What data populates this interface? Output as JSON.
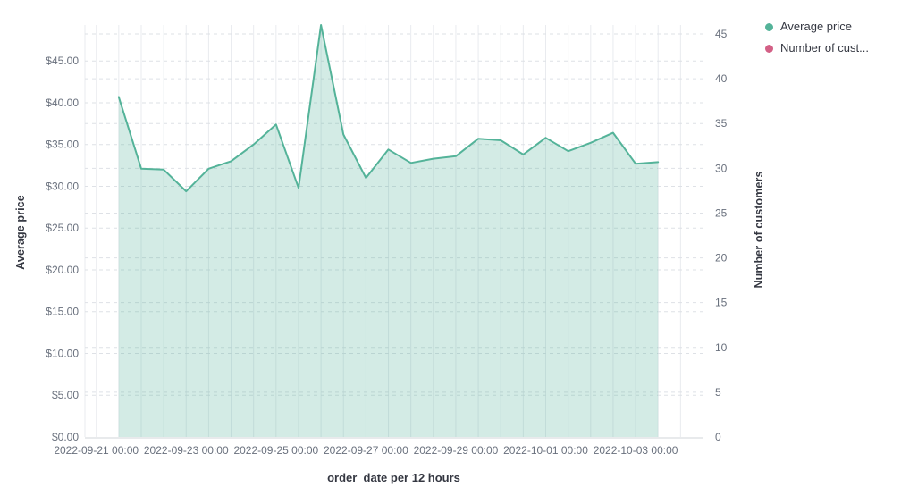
{
  "legend": {
    "items": [
      {
        "label": "Average price",
        "color": "#54B399"
      },
      {
        "label": "Number of cust...",
        "color": "#D36086"
      }
    ]
  },
  "chart_data": {
    "type": "area",
    "title": "",
    "xlabel": "order_date per 12 hours",
    "left_axis": {
      "label": "Average price",
      "tick_labels": [
        "$0.00",
        "$5.00",
        "$10.00",
        "$15.00",
        "$20.00",
        "$25.00",
        "$30.00",
        "$35.00",
        "$40.00",
        "$45.00"
      ],
      "tick_values": [
        0,
        5,
        10,
        15,
        20,
        25,
        30,
        35,
        40,
        45
      ],
      "range": [
        0,
        49.3
      ]
    },
    "right_axis": {
      "label": "Number of customers",
      "tick_labels": [
        "0",
        "5",
        "10",
        "15",
        "20",
        "25",
        "30",
        "35",
        "40",
        "45"
      ],
      "tick_values": [
        0,
        5,
        10,
        15,
        20,
        25,
        30,
        35,
        40,
        45
      ],
      "range": [
        0,
        46
      ]
    },
    "x_tick_labels": [
      "2022-09-21 00:00",
      "2022-09-23 00:00",
      "2022-09-25 00:00",
      "2022-09-27 00:00",
      "2022-09-29 00:00",
      "2022-10-01 00:00",
      "2022-10-03 00:00"
    ],
    "x": [
      "2022-09-21 12:00",
      "2022-09-22 00:00",
      "2022-09-22 12:00",
      "2022-09-23 00:00",
      "2022-09-23 12:00",
      "2022-09-24 00:00",
      "2022-09-24 12:00",
      "2022-09-25 00:00",
      "2022-09-25 12:00",
      "2022-09-26 00:00",
      "2022-09-26 12:00",
      "2022-09-27 00:00",
      "2022-09-27 12:00",
      "2022-09-28 00:00",
      "2022-09-28 12:00",
      "2022-09-29 00:00",
      "2022-09-29 12:00",
      "2022-09-30 00:00",
      "2022-09-30 12:00",
      "2022-10-01 00:00",
      "2022-10-01 12:00",
      "2022-10-02 00:00",
      "2022-10-02 12:00",
      "2022-10-03 00:00",
      "2022-10-03 12:00"
    ],
    "series": [
      {
        "name": "Average price",
        "color": "#54B399",
        "axis": "left",
        "visible": true,
        "values": [
          40.7,
          32.1,
          32.0,
          29.4,
          32.1,
          33.0,
          35.0,
          37.4,
          29.8,
          49.3,
          36.2,
          31.0,
          34.4,
          32.8,
          33.3,
          33.6,
          35.7,
          35.5,
          33.8,
          35.8,
          34.2,
          35.2,
          36.4,
          32.7,
          32.9
        ]
      },
      {
        "name": "Number of customers",
        "color": "#D36086",
        "axis": "right",
        "visible": false,
        "values": []
      }
    ],
    "grid": true,
    "legend_position": "top-right",
    "colors": {
      "line": "#54B399",
      "fill_opacity": 0.26,
      "grid_vertical": "#e9ebef",
      "grid_dashed": "#dee1e6",
      "axis_line": "#d0d4da",
      "tick_text": "#69707d",
      "title_text": "#343741"
    }
  }
}
